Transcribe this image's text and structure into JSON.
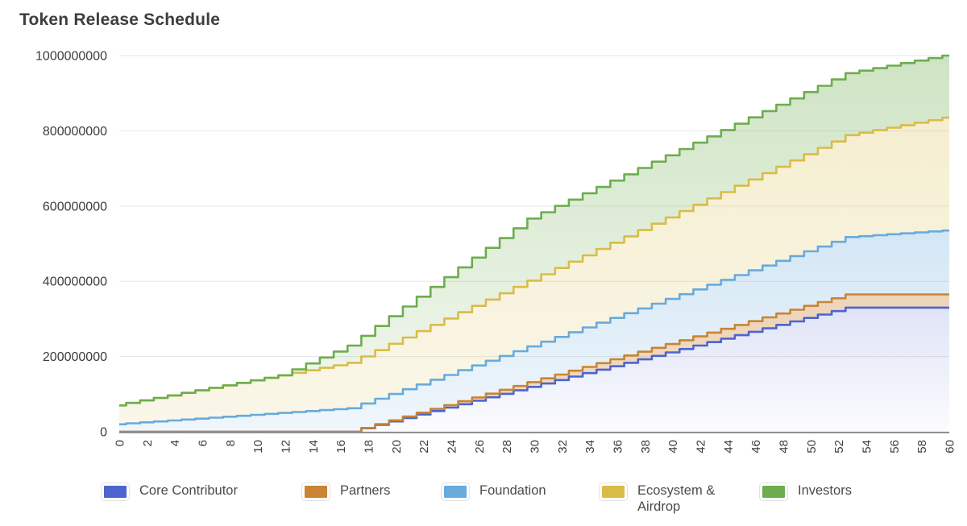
{
  "title": "Token Release Schedule",
  "chart_data": {
    "type": "area",
    "stacked": true,
    "step_interpolation": true,
    "title": "Token Release Schedule",
    "xlabel": "",
    "ylabel": "",
    "x_unit": "month",
    "x_range": [
      0,
      60
    ],
    "ylim": [
      0,
      1000000000
    ],
    "y_ticks": [
      0,
      200000000,
      400000000,
      600000000,
      800000000,
      1000000000
    ],
    "x_ticks": [
      0,
      2,
      4,
      6,
      8,
      10,
      12,
      14,
      16,
      18,
      20,
      22,
      24,
      26,
      28,
      30,
      32,
      34,
      36,
      38,
      40,
      42,
      44,
      46,
      48,
      50,
      52,
      54,
      56,
      58,
      60
    ],
    "legend_position": "bottom",
    "grid": "horizontal",
    "grid_color": "#e6e6e6",
    "axis_line_color": "#909090",
    "tick_label_color": "#3c3c3c",
    "series": [
      {
        "name": "Core Contributor",
        "color": "#4d64ce",
        "total_allocation": 330000000,
        "values": [
          0,
          0,
          0,
          0,
          0,
          0,
          0,
          0,
          0,
          0,
          0,
          0,
          0,
          0,
          0,
          0,
          0,
          0,
          9166667,
          18333333,
          27500000,
          36666667,
          45833333,
          55000000,
          64166667,
          73333333,
          82500000,
          91666667,
          100833333,
          110000000,
          119166667,
          128333333,
          137500000,
          146666667,
          155833333,
          165000000,
          174166667,
          183333333,
          192500000,
          201666667,
          210833333,
          220000000,
          229166667,
          238333333,
          247500000,
          256666667,
          265833333,
          275000000,
          284166667,
          293333333,
          302500000,
          311666667,
          320833333,
          330000000,
          330000000,
          330000000,
          330000000,
          330000000,
          330000000,
          330000000,
          330000000
        ]
      },
      {
        "name": "Partners",
        "color": "#c98434",
        "total_allocation": 35000000,
        "values": [
          0,
          0,
          0,
          0,
          0,
          0,
          0,
          0,
          0,
          0,
          0,
          0,
          0,
          0,
          0,
          0,
          0,
          0,
          972222,
          1944444,
          2916667,
          3888889,
          4861111,
          5833333,
          6805556,
          7777778,
          8750000,
          9722222,
          10694444,
          11666667,
          12638889,
          13611111,
          14583333,
          15555556,
          16527778,
          17500000,
          18472222,
          19444444,
          20416667,
          21388889,
          22361111,
          23333333,
          24305556,
          25277778,
          26250000,
          27222222,
          28194444,
          29166667,
          30138889,
          31111111,
          32083333,
          33055556,
          34027778,
          35000000,
          35000000,
          35000000,
          35000000,
          35000000,
          35000000,
          35000000,
          35000000
        ]
      },
      {
        "name": "Foundation",
        "color": "#68aadc",
        "total_allocation": 170000000,
        "values": [
          20000000,
          22500000,
          25000000,
          27500000,
          30000000,
          32500000,
          35000000,
          37500000,
          40000000,
          42500000,
          45000000,
          47500000,
          50000000,
          52500000,
          55000000,
          57500000,
          60000000,
          62500000,
          65000000,
          67500000,
          70000000,
          72500000,
          75000000,
          77500000,
          80000000,
          82500000,
          85000000,
          87500000,
          90000000,
          92500000,
          95000000,
          97500000,
          100000000,
          102500000,
          105000000,
          107500000,
          110000000,
          112500000,
          115000000,
          117500000,
          120000000,
          122500000,
          125000000,
          127500000,
          130000000,
          132500000,
          135000000,
          137500000,
          140000000,
          142500000,
          145000000,
          147500000,
          150000000,
          152500000,
          155000000,
          157500000,
          160000000,
          162500000,
          165000000,
          167500000,
          170000000
        ]
      },
      {
        "name": "Ecosystem & Airdrop",
        "color": "#d9bc47",
        "total_allocation": 300000000,
        "values": [
          50000000,
          54166667,
          58333333,
          62500000,
          66666667,
          70833333,
          75000000,
          79166667,
          83333333,
          87500000,
          91666667,
          95833333,
          100000000,
          104166667,
          108333333,
          112500000,
          116666667,
          120833333,
          125000000,
          129166667,
          133333333,
          137500000,
          141666667,
          145833333,
          150000000,
          154166667,
          158333333,
          162500000,
          166666667,
          170833333,
          175000000,
          179166667,
          183333333,
          187500000,
          191666667,
          195833333,
          200000000,
          204166667,
          208333333,
          212500000,
          216666667,
          220833333,
          225000000,
          229166667,
          233333333,
          237500000,
          241666667,
          245833333,
          250000000,
          254166667,
          258333333,
          262500000,
          266666667,
          270833333,
          275000000,
          279166667,
          283333333,
          287500000,
          291666667,
          295833333,
          300000000
        ]
      },
      {
        "name": "Investors",
        "color": "#6dad4d",
        "total_allocation": 165000000,
        "values": [
          0,
          0,
          0,
          0,
          0,
          0,
          0,
          0,
          0,
          0,
          0,
          0,
          0,
          9166667,
          18333333,
          27500000,
          36666667,
          45833333,
          55000000,
          64166667,
          73333333,
          82500000,
          91666667,
          100833333,
          110000000,
          119166667,
          128333333,
          137500000,
          146666667,
          155833333,
          165000000,
          165000000,
          165000000,
          165000000,
          165000000,
          165000000,
          165000000,
          165000000,
          165000000,
          165000000,
          165000000,
          165000000,
          165000000,
          165000000,
          165000000,
          165000000,
          165000000,
          165000000,
          165000000,
          165000000,
          165000000,
          165000000,
          165000000,
          165000000,
          165000000,
          165000000,
          165000000,
          165000000,
          165000000,
          165000000,
          165000000
        ]
      }
    ]
  }
}
